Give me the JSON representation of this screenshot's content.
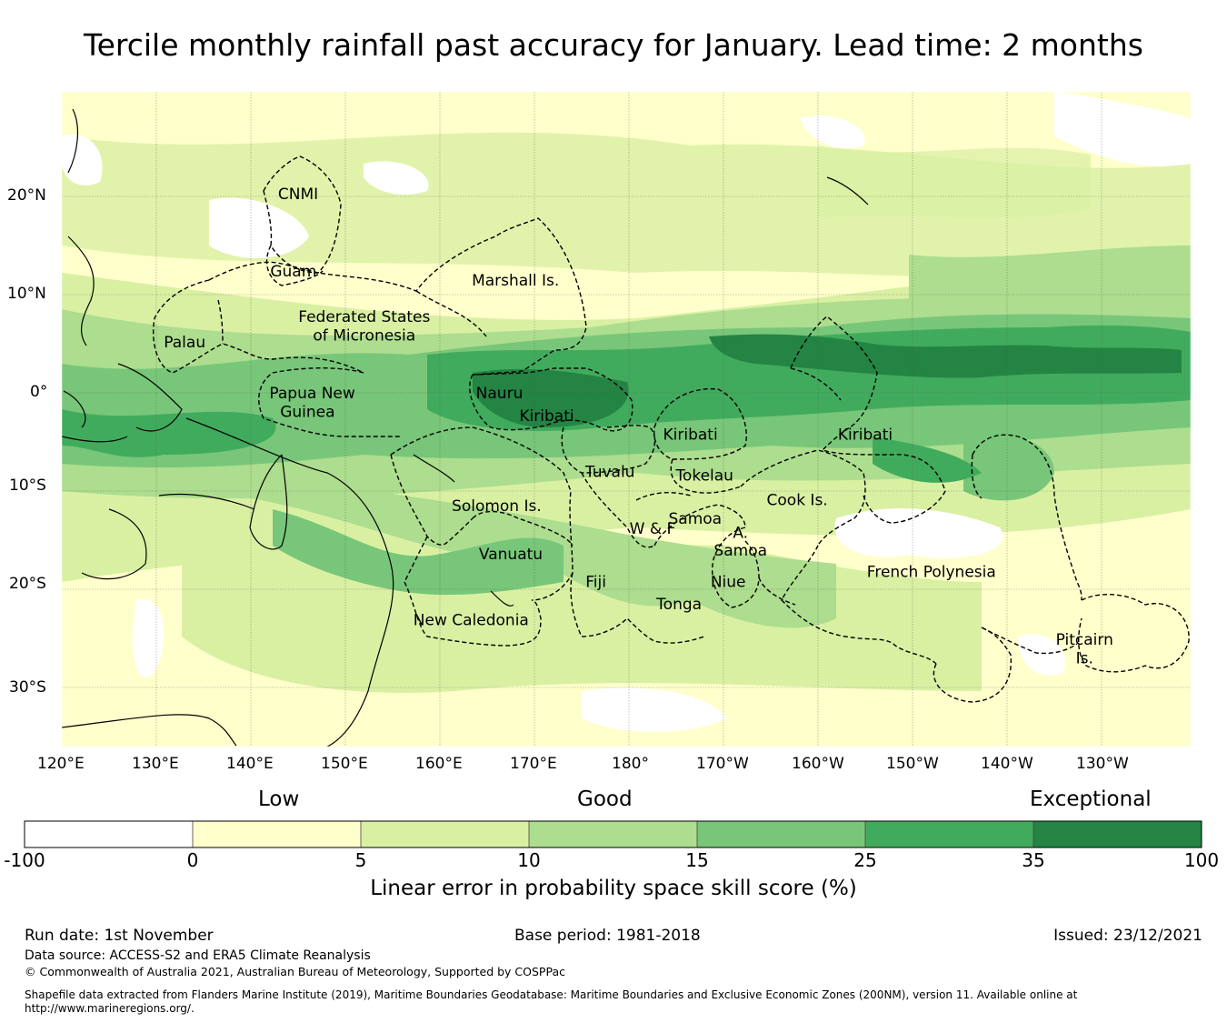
{
  "title": "Tercile monthly rainfall past accuracy for January. Lead time: 2 months",
  "map": {
    "lat_ticks": [
      "20°N",
      "10°N",
      "0°",
      "10°S",
      "20°S",
      "30°S"
    ],
    "lon_ticks": [
      "120°E",
      "130°E",
      "140°E",
      "150°E",
      "160°E",
      "170°E",
      "180°",
      "170°W",
      "160°W",
      "150°W",
      "140°W",
      "130°W"
    ],
    "regions": [
      {
        "name": "CNMI",
        "lon": 145.0,
        "lat": 20.3
      },
      {
        "name": "Guam",
        "lon": 144.5,
        "lat": 12.4
      },
      {
        "name": "Marshall Is.",
        "lon": 168.0,
        "lat": 11.5
      },
      {
        "name": "Federated States",
        "lon": 152.0,
        "lat": 7.8
      },
      {
        "name": "of Micronesia",
        "lon": 152.0,
        "lat": 5.9
      },
      {
        "name": "Palau",
        "lon": 133.0,
        "lat": 5.2
      },
      {
        "name": "Papua New",
        "lon": 146.5,
        "lat": 0.0
      },
      {
        "name": "Guinea",
        "lon": 146.0,
        "lat": -1.9
      },
      {
        "name": "Nauru",
        "lon": 166.3,
        "lat": 0.0
      },
      {
        "name": "Kiribati",
        "lon": 171.3,
        "lat": -2.3
      },
      {
        "name": "Kiribati",
        "lon": 186.5,
        "lat": -4.2
      },
      {
        "name": "Kiribati",
        "lon": 205.0,
        "lat": -4.2
      },
      {
        "name": "Tuvalu",
        "lon": 178.0,
        "lat": -8.0
      },
      {
        "name": "Tokelau",
        "lon": 188.0,
        "lat": -8.4
      },
      {
        "name": "Solomon Is.",
        "lon": 166.0,
        "lat": -11.5
      },
      {
        "name": "Cook Is.",
        "lon": 197.8,
        "lat": -10.9
      },
      {
        "name": "Samoa",
        "lon": 187.0,
        "lat": -12.8
      },
      {
        "name": "W & F",
        "lon": 182.5,
        "lat": -13.8
      },
      {
        "name": "A.",
        "lon": 191.8,
        "lat": -14.2
      },
      {
        "name": "Samoa",
        "lon": 191.8,
        "lat": -16.0
      },
      {
        "name": "Vanuatu",
        "lon": 167.5,
        "lat": -16.4
      },
      {
        "name": "French Polynesia",
        "lon": 212.0,
        "lat": -18.2
      },
      {
        "name": "Fiji",
        "lon": 176.5,
        "lat": -19.2
      },
      {
        "name": "Niue",
        "lon": 190.5,
        "lat": -19.2
      },
      {
        "name": "Tonga",
        "lon": 185.3,
        "lat": -21.5
      },
      {
        "name": "New Caledonia",
        "lon": 163.3,
        "lat": -23.1
      },
      {
        "name": "Pitcairn",
        "lon": 228.2,
        "lat": -25.1
      },
      {
        "name": "Is.",
        "lon": 228.2,
        "lat": -27.0
      }
    ]
  },
  "colorbar": {
    "categories": [
      "Low",
      "Good",
      "Exceptional"
    ],
    "colors": [
      "#ffffff",
      "#ffffcc",
      "#d9f0a3",
      "#addd8e",
      "#78c679",
      "#41ab5d",
      "#238443"
    ],
    "ticks": [
      "-100",
      "0",
      "5",
      "10",
      "15",
      "25",
      "35",
      "100"
    ],
    "title": "Linear error in probability space skill score (%)"
  },
  "footer": {
    "run_date": "Run date: 1st November",
    "base_period": "Base period: 1981-2018",
    "issued": "Issued: 23/12/2021",
    "data_source": "Data source: ACCESS-S2 and ERA5 Climate Reanalysis",
    "copyright": "© Commonwealth of Australia 2021, Australian Bureau of Meteorology, Supported by COSPPac",
    "shapefile": "Shapefile data extracted from Flanders Marine Institute (2019), Maritime Boundaries Geodatabase: Maritime Boundaries and Exclusive Economic Zones (200NM), version 11. Available online at http://www.marineregions.org/."
  }
}
